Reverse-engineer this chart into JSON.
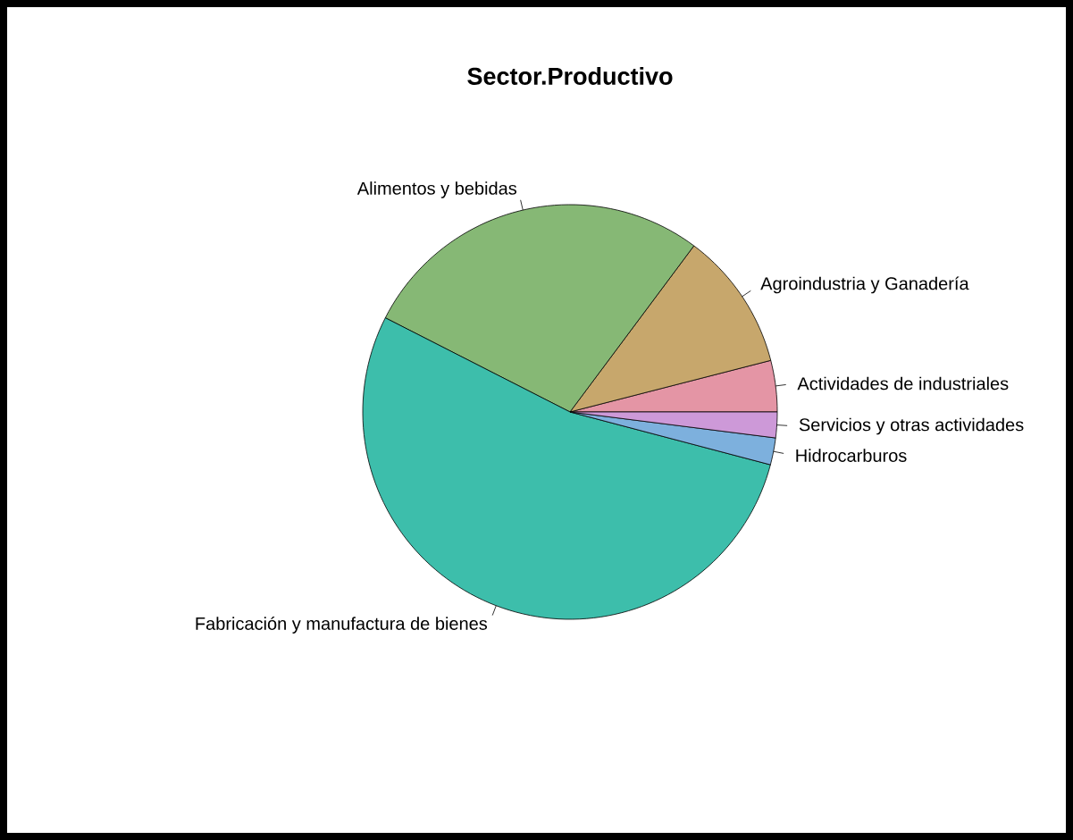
{
  "chart_data": {
    "type": "pie",
    "title": "Sector.Productivo",
    "categories": [
      "Actividades de industriales",
      "Agroindustria y Ganadería",
      "Alimentos y bebidas",
      "Fabricación y manufactura de bienes",
      "Hidrocarburos",
      "Servicios y otras actividades"
    ],
    "values": [
      4.0,
      10.8,
      27.7,
      53.4,
      2.1,
      2.0
    ],
    "colors": [
      "#e495a5",
      "#c7a76c",
      "#86b875",
      "#3dbeab",
      "#7db0dd",
      "#cd99d8"
    ]
  }
}
